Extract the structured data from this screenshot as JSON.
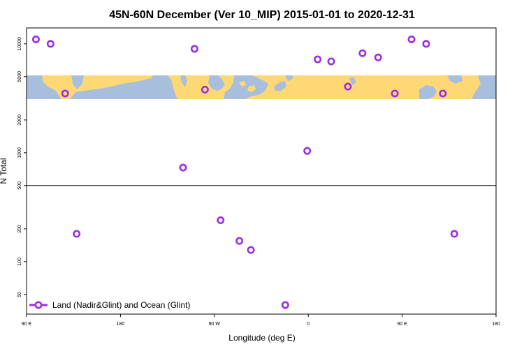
{
  "chart_data": {
    "type": "scatter",
    "title": "45N-60N December (Ver 10_MIP)   2015-01-01 to 2020-12-31",
    "xlabel": "Longitude (deg E)",
    "ylabel": "N Total",
    "x_ticks": [
      {
        "value": 90,
        "label": "90 E"
      },
      {
        "value": 180,
        "label": "180"
      },
      {
        "value": 270,
        "label": "90 W"
      },
      {
        "value": 360,
        "label": "0"
      },
      {
        "value": 450,
        "label": "90 E"
      },
      {
        "value": 540,
        "label": "180"
      }
    ],
    "xlim": [
      90,
      540
    ],
    "y_scale": "log",
    "y_ticks": [
      50,
      100,
      200,
      500,
      1000,
      2000,
      5000,
      10000
    ],
    "y_tick_labels": [
      "50",
      "100",
      "200",
      "500",
      "1000",
      "2000",
      "5000",
      "10000"
    ],
    "ylim": [
      33,
      14000
    ],
    "background": "world land/ocean map strip, latitude band 45N-60N",
    "colors": {
      "land": "#ffd876",
      "ocean": "#a8bedd",
      "series": "#9b2fe0"
    },
    "legend": {
      "position": "bottom-left"
    },
    "series": [
      {
        "name": "Land (Nadir&Glint) and Ocean (Glint)",
        "points": [
          {
            "x": 99,
            "y": 11000
          },
          {
            "x": 113,
            "y": 10000
          },
          {
            "x": 127,
            "y": 3500
          },
          {
            "x": 138,
            "y": 180
          },
          {
            "x": 240,
            "y": 730
          },
          {
            "x": 251,
            "y": 9000
          },
          {
            "x": 261,
            "y": 3800
          },
          {
            "x": 276,
            "y": 240
          },
          {
            "x": 294,
            "y": 155
          },
          {
            "x": 305,
            "y": 128
          },
          {
            "x": 338,
            "y": 40
          },
          {
            "x": 359,
            "y": 1040
          },
          {
            "x": 369,
            "y": 7200
          },
          {
            "x": 382,
            "y": 6900
          },
          {
            "x": 398,
            "y": 4050
          },
          {
            "x": 412,
            "y": 8200
          },
          {
            "x": 427,
            "y": 7500
          },
          {
            "x": 443,
            "y": 3500
          },
          {
            "x": 459,
            "y": 11000
          },
          {
            "x": 473,
            "y": 10000
          },
          {
            "x": 489,
            "y": 3500
          },
          {
            "x": 500,
            "y": 180
          }
        ]
      }
    ]
  }
}
